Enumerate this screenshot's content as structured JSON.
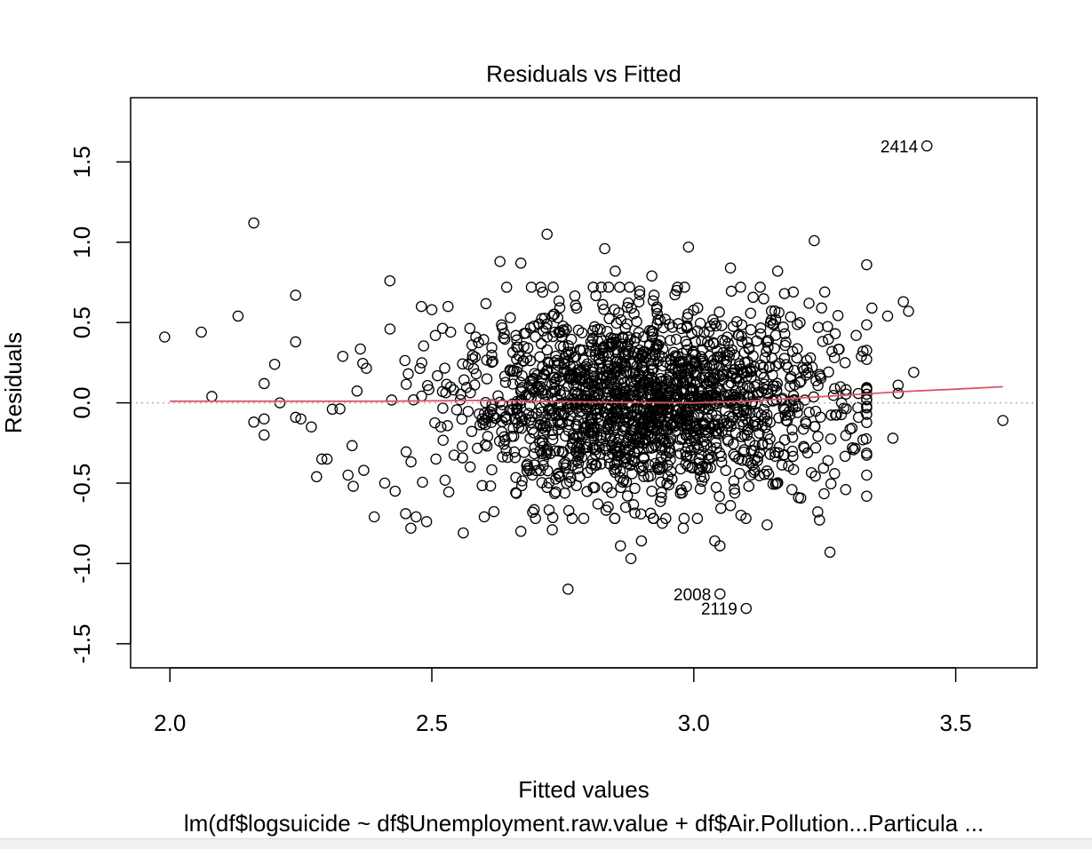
{
  "chart_data": {
    "type": "scatter",
    "title": "Residuals vs Fitted",
    "xlabel": "Fitted values",
    "ylabel": "Residuals",
    "subtitle": "lm(df$logsuicide ~ df$Unemployment.raw.value + df$Air.Pollution...Particula ...",
    "xlim": [
      1.925,
      3.655
    ],
    "ylim": [
      -1.65,
      1.9
    ],
    "x_ticks": [
      2.0,
      2.5,
      3.0,
      3.5
    ],
    "x_tick_labels": [
      "2.0",
      "2.5",
      "3.0",
      "3.5"
    ],
    "y_ticks": [
      -1.5,
      -1.0,
      -0.5,
      0.0,
      0.5,
      1.0,
      1.5
    ],
    "y_tick_labels": [
      "-1.5",
      "-1.0",
      "-0.5",
      "0.0",
      "0.5",
      "1.0",
      "1.5"
    ],
    "reference_line_y": 0,
    "grid": false,
    "colors": {
      "points": "#000000",
      "smoother": "#df536b",
      "reference": "#b0b0b0"
    },
    "labeled_points": [
      {
        "label": "2414",
        "x": 3.445,
        "y": 1.6
      },
      {
        "label": "2008",
        "x": 3.05,
        "y": -1.19
      },
      {
        "label": "2119",
        "x": 3.1,
        "y": -1.28
      }
    ],
    "outlier_points": [
      [
        1.99,
        0.41
      ],
      [
        2.06,
        0.44
      ],
      [
        2.08,
        0.04
      ],
      [
        2.13,
        0.54
      ],
      [
        2.16,
        1.12
      ],
      [
        2.18,
        0.12
      ],
      [
        2.16,
        -0.12
      ],
      [
        2.18,
        -0.1
      ],
      [
        2.18,
        -0.2
      ],
      [
        2.2,
        0.24
      ],
      [
        2.21,
        0.0
      ],
      [
        2.24,
        0.67
      ],
      [
        2.24,
        0.38
      ],
      [
        2.24,
        -0.09
      ],
      [
        2.25,
        -0.1
      ],
      [
        2.27,
        -0.15
      ],
      [
        2.28,
        -0.46
      ],
      [
        2.29,
        -0.35
      ],
      [
        2.3,
        -0.35
      ],
      [
        2.31,
        -0.04
      ],
      [
        2.33,
        0.29
      ],
      [
        2.34,
        -0.45
      ],
      [
        2.35,
        -0.52
      ],
      [
        2.37,
        -0.42
      ],
      [
        2.39,
        -0.71
      ],
      [
        2.41,
        -0.5
      ],
      [
        2.42,
        0.76
      ],
      [
        2.43,
        -0.55
      ],
      [
        2.45,
        -0.69
      ],
      [
        2.46,
        -0.78
      ],
      [
        2.47,
        -0.71
      ],
      [
        2.49,
        -0.74
      ],
      [
        2.48,
        0.6
      ],
      [
        2.5,
        0.58
      ],
      [
        2.56,
        -0.81
      ],
      [
        2.6,
        -0.71
      ],
      [
        2.63,
        0.88
      ],
      [
        2.67,
        0.87
      ],
      [
        2.67,
        -0.8
      ],
      [
        2.72,
        1.05
      ],
      [
        2.73,
        -0.79
      ],
      [
        2.76,
        -1.16
      ],
      [
        2.79,
        -0.72
      ],
      [
        2.83,
        0.96
      ],
      [
        2.85,
        0.82
      ],
      [
        2.86,
        -0.89
      ],
      [
        2.87,
        -0.65
      ],
      [
        2.88,
        -0.97
      ],
      [
        2.9,
        -0.86
      ],
      [
        2.92,
        0.79
      ],
      [
        2.94,
        -0.75
      ],
      [
        2.98,
        -0.78
      ],
      [
        2.99,
        0.97
      ],
      [
        3.04,
        -0.86
      ],
      [
        3.05,
        -0.89
      ],
      [
        3.07,
        0.84
      ],
      [
        3.07,
        -0.64
      ],
      [
        3.09,
        -0.7
      ],
      [
        3.14,
        -0.76
      ],
      [
        3.16,
        0.82
      ],
      [
        3.19,
        0.69
      ],
      [
        3.2,
        -0.59
      ],
      [
        3.22,
        0.62
      ],
      [
        3.23,
        1.01
      ],
      [
        3.24,
        -0.73
      ],
      [
        3.25,
        0.69
      ],
      [
        3.26,
        -0.93
      ],
      [
        3.27,
        0.43
      ],
      [
        3.29,
        -0.54
      ],
      [
        3.31,
        0.42
      ],
      [
        3.32,
        0.29
      ],
      [
        3.33,
        0.86
      ],
      [
        3.33,
        -0.45
      ],
      [
        3.34,
        0.59
      ],
      [
        3.37,
        0.54
      ],
      [
        3.38,
        -0.22
      ],
      [
        3.39,
        0.11
      ],
      [
        3.39,
        0.06
      ],
      [
        3.4,
        0.63
      ],
      [
        3.41,
        0.57
      ],
      [
        3.42,
        0.19
      ],
      [
        3.59,
        -0.11
      ]
    ],
    "smoother": [
      [
        2.0,
        0.01
      ],
      [
        2.2,
        0.01
      ],
      [
        2.4,
        0.01
      ],
      [
        2.6,
        0.015
      ],
      [
        2.8,
        0.005
      ],
      [
        3.0,
        0.0
      ],
      [
        3.1,
        0.01
      ],
      [
        3.2,
        0.03
      ],
      [
        3.3,
        0.05
      ],
      [
        3.4,
        0.07
      ],
      [
        3.5,
        0.085
      ],
      [
        3.59,
        0.1
      ]
    ],
    "bulk_point_count": 1850,
    "bulk_distribution": {
      "x_mean": 2.91,
      "x_sd": 0.18,
      "y_mean": 0.0,
      "y_sd": 0.28
    }
  }
}
